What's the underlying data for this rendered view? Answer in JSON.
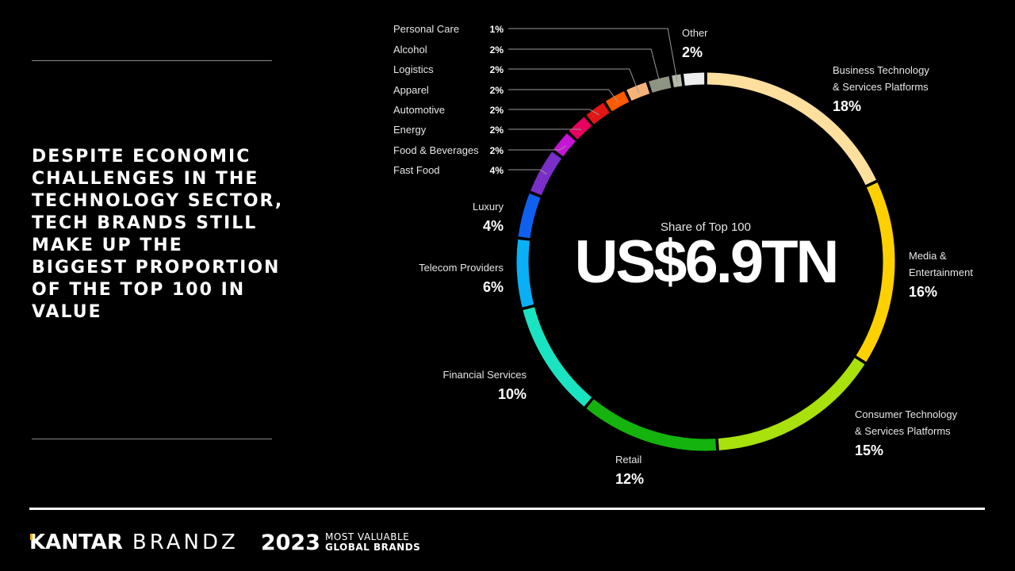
{
  "headline": "DESPITE ECONOMIC CHALLENGES IN THE TECHNOLOGY SECTOR, TECH BRANDS STILL MAKE UP THE BIGGEST PROPORTION OF THE TOP 100 IN VALUE",
  "footer": {
    "kantar": "KANTAR",
    "brandz": "BRANDZ",
    "year": "2023",
    "tagline_1": "MOST VALUABLE",
    "tagline_2": "GLOBAL BRANDS"
  },
  "chart_data": {
    "type": "pie",
    "center_subtitle": "Share of Top 100",
    "center_value": "US$6.9TN",
    "slices": [
      {
        "name": "Business Technology & Services Platforms",
        "lines": [
          "Business Technology",
          "& Services Platforms"
        ],
        "value": 18,
        "label": "18%",
        "color": "#ffdf9e"
      },
      {
        "name": "Media & Entertainment",
        "lines": [
          "Media &",
          "Entertainment"
        ],
        "value": 16,
        "label": "16%",
        "color": "#ffd000"
      },
      {
        "name": "Consumer Technology & Services Platforms",
        "lines": [
          "Consumer Technology",
          "& Services Platforms"
        ],
        "value": 15,
        "label": "15%",
        "color": "#a8e10c"
      },
      {
        "name": "Retail",
        "lines": [
          "Retail"
        ],
        "value": 12,
        "label": "12%",
        "color": "#14b30d"
      },
      {
        "name": "Financial Services",
        "lines": [
          "Financial Services"
        ],
        "value": 10,
        "label": "10%",
        "color": "#1ae3c2"
      },
      {
        "name": "Telecom Providers",
        "lines": [
          "Telecom Providers"
        ],
        "value": 6,
        "label": "6%",
        "color": "#0ab0f5"
      },
      {
        "name": "Luxury",
        "lines": [
          "Luxury"
        ],
        "value": 4,
        "label": "4%",
        "color": "#1060f0"
      },
      {
        "name": "Fast Food",
        "lines": [
          "Fast Food"
        ],
        "value": 4,
        "label": "4%",
        "color": "#7b2fc9"
      },
      {
        "name": "Food & Beverages",
        "lines": [
          "Food & Beverages"
        ],
        "value": 2,
        "label": "2%",
        "color": "#c515d5"
      },
      {
        "name": "Energy",
        "lines": [
          "Energy"
        ],
        "value": 2,
        "label": "2%",
        "color": "#e8005f"
      },
      {
        "name": "Automotive",
        "lines": [
          "Automotive"
        ],
        "value": 2,
        "label": "2%",
        "color": "#e41515"
      },
      {
        "name": "Apparel",
        "lines": [
          "Apparel"
        ],
        "value": 2,
        "label": "2%",
        "color": "#ff5a00"
      },
      {
        "name": "Logistics",
        "lines": [
          "Logistics"
        ],
        "value": 2,
        "label": "2%",
        "color": "#f7b27a"
      },
      {
        "name": "Alcohol",
        "lines": [
          "Alcohol"
        ],
        "value": 2,
        "label": "2%",
        "color": "#8d9482"
      },
      {
        "name": "Personal Care",
        "lines": [
          "Personal Care"
        ],
        "value": 1,
        "label": "1%",
        "color": "#b3baa7"
      },
      {
        "name": "Other",
        "lines": [
          "Other"
        ],
        "value": 2,
        "label": "2%",
        "color": "#ededed"
      }
    ]
  }
}
